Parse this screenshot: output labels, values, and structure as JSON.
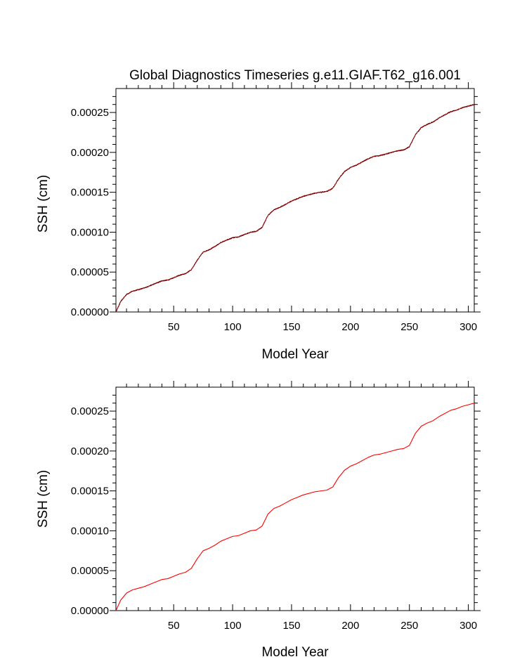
{
  "chart_data": [
    {
      "type": "line",
      "title": "Global Diagnostics Timeseries g.e11.GIAF.T62_g16.001",
      "xlabel": "Model Year",
      "ylabel": "SSH (cm)",
      "xlim": [
        1,
        305
      ],
      "ylim": [
        0,
        0.00028
      ],
      "xticks": [
        50,
        100,
        150,
        200,
        250,
        300
      ],
      "yticks": [
        0,
        5e-05,
        0.0001,
        0.00015,
        0.0002,
        0.00025
      ],
      "xtick_labels": [
        "50",
        "100",
        "150",
        "200",
        "250",
        "300"
      ],
      "ytick_labels": [
        "0.00000",
        "0.00005",
        "0.00010",
        "0.00015",
        "0.00020",
        "0.00025"
      ],
      "grid": false,
      "series": [
        {
          "color": "#800000",
          "resolution": "monthly",
          "x": [
            1,
            5,
            10,
            15,
            20,
            25,
            30,
            35,
            40,
            45,
            50,
            55,
            60,
            65,
            70,
            75,
            80,
            85,
            90,
            95,
            100,
            105,
            110,
            115,
            120,
            125,
            130,
            135,
            140,
            145,
            150,
            155,
            160,
            165,
            170,
            175,
            180,
            185,
            190,
            195,
            200,
            205,
            210,
            215,
            220,
            225,
            230,
            235,
            240,
            245,
            250,
            255,
            260,
            265,
            270,
            275,
            280,
            285,
            290,
            295,
            300,
            305
          ],
          "y": [
            0.0,
            1.3e-05,
            2.2e-05,
            2.6e-05,
            2.8e-05,
            3e-05,
            3.3e-05,
            3.6e-05,
            3.9e-05,
            4e-05,
            4.3e-05,
            4.6e-05,
            4.8e-05,
            5.3e-05,
            6.5e-05,
            7.5e-05,
            7.8e-05,
            8.2e-05,
            8.7e-05,
            9e-05,
            9.3e-05,
            9.4e-05,
            9.7e-05,
            0.0001,
            0.000101,
            0.000106,
            0.000121,
            0.000128,
            0.000131,
            0.000135,
            0.000139,
            0.000142,
            0.000145,
            0.000147,
            0.000149,
            0.00015,
            0.000151,
            0.000155,
            0.000167,
            0.000176,
            0.000181,
            0.000184,
            0.000188,
            0.000192,
            0.000195,
            0.000196,
            0.000198,
            0.0002,
            0.000202,
            0.000203,
            0.000207,
            0.000222,
            0.000231,
            0.000235,
            0.000238,
            0.000243,
            0.000247,
            0.000251,
            0.000253,
            0.000256,
            0.000258,
            0.00026
          ]
        }
      ]
    },
    {
      "type": "line",
      "title": "",
      "xlabel": "Model Year",
      "ylabel": "SSH (cm)",
      "xlim": [
        1,
        305
      ],
      "ylim": [
        0,
        0.00028
      ],
      "xticks": [
        50,
        100,
        150,
        200,
        250,
        300
      ],
      "yticks": [
        0,
        5e-05,
        0.0001,
        0.00015,
        0.0002,
        0.00025
      ],
      "xtick_labels": [
        "50",
        "100",
        "150",
        "200",
        "250",
        "300"
      ],
      "ytick_labels": [
        "0.00000",
        "0.00005",
        "0.00010",
        "0.00015",
        "0.00020",
        "0.00025"
      ],
      "grid": false,
      "series": [
        {
          "color": "#ff0000",
          "resolution": "annual",
          "x": [
            1,
            5,
            10,
            15,
            20,
            25,
            30,
            35,
            40,
            45,
            50,
            55,
            60,
            65,
            70,
            75,
            80,
            85,
            90,
            95,
            100,
            105,
            110,
            115,
            120,
            125,
            130,
            135,
            140,
            145,
            150,
            155,
            160,
            165,
            170,
            175,
            180,
            185,
            190,
            195,
            200,
            205,
            210,
            215,
            220,
            225,
            230,
            235,
            240,
            245,
            250,
            255,
            260,
            265,
            270,
            275,
            280,
            285,
            290,
            295,
            300,
            305
          ],
          "y": [
            0.0,
            1.3e-05,
            2.2e-05,
            2.6e-05,
            2.8e-05,
            3e-05,
            3.3e-05,
            3.6e-05,
            3.9e-05,
            4e-05,
            4.3e-05,
            4.6e-05,
            4.8e-05,
            5.3e-05,
            6.5e-05,
            7.5e-05,
            7.8e-05,
            8.2e-05,
            8.7e-05,
            9e-05,
            9.3e-05,
            9.4e-05,
            9.7e-05,
            0.0001,
            0.000101,
            0.000106,
            0.000121,
            0.000128,
            0.000131,
            0.000135,
            0.000139,
            0.000142,
            0.000145,
            0.000147,
            0.000149,
            0.00015,
            0.000151,
            0.000155,
            0.000167,
            0.000176,
            0.000181,
            0.000184,
            0.000188,
            0.000192,
            0.000195,
            0.000196,
            0.000198,
            0.0002,
            0.000202,
            0.000203,
            0.000207,
            0.000222,
            0.000231,
            0.000235,
            0.000238,
            0.000243,
            0.000247,
            0.000251,
            0.000253,
            0.000256,
            0.000258,
            0.00026
          ]
        }
      ]
    }
  ]
}
